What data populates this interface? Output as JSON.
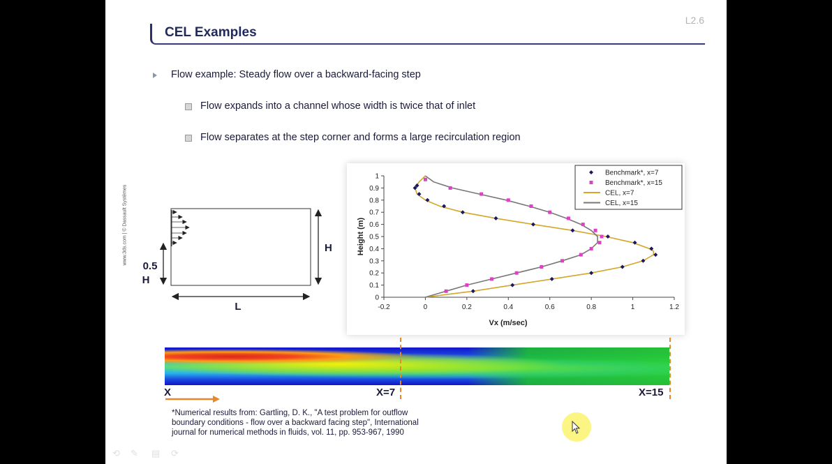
{
  "slide": {
    "page_number": "L2.6",
    "title": "CEL Examples",
    "bullets": [
      {
        "level": 1,
        "text": "Flow example: Steady flow over a backward-facing step"
      },
      {
        "level": 2,
        "text": "Flow expands into a channel whose width is twice that of inlet"
      },
      {
        "level": 2,
        "text": "Flow separates at the step corner and forms a large recirculation region"
      }
    ],
    "copyright": "www.3ds.com | © Dassault Systèmes"
  },
  "diagram": {
    "label_inlet": "0.5 H",
    "label_inlet_line1": "0.5",
    "label_inlet_line2": "H",
    "label_height": "H",
    "label_length": "L"
  },
  "chart_data": {
    "type": "scatter",
    "xlabel": "Vx (m/sec)",
    "ylabel": "Height (m)",
    "xlim": [
      -0.2,
      1.2
    ],
    "ylim": [
      0,
      1
    ],
    "xticks": [
      "-0.2",
      "0",
      "0.2",
      "0.4",
      "0.6",
      "0.8",
      "1",
      "1.2"
    ],
    "yticks": [
      "0",
      "0.1",
      "0.2",
      "0.3",
      "0.4",
      "0.5",
      "0.6",
      "0.7",
      "0.8",
      "0.9",
      "1"
    ],
    "legend_position": "top-right",
    "series": [
      {
        "name": "Benchmark*, x=7",
        "kind": "scatter",
        "marker": "diamond",
        "color": "#1a1a5a",
        "points": [
          [
            0.23,
            0.05
          ],
          [
            0.42,
            0.1
          ],
          [
            0.61,
            0.15
          ],
          [
            0.8,
            0.2
          ],
          [
            0.95,
            0.25
          ],
          [
            1.05,
            0.3
          ],
          [
            1.11,
            0.35
          ],
          [
            1.09,
            0.4
          ],
          [
            1.01,
            0.45
          ],
          [
            0.88,
            0.5
          ],
          [
            0.71,
            0.55
          ],
          [
            0.52,
            0.6
          ],
          [
            0.34,
            0.65
          ],
          [
            0.18,
            0.7
          ],
          [
            0.09,
            0.75
          ],
          [
            0.01,
            0.8
          ],
          [
            -0.03,
            0.85
          ],
          [
            -0.05,
            0.9
          ],
          [
            -0.04,
            0.92
          ]
        ]
      },
      {
        "name": "Benchmark*, x=15",
        "kind": "scatter",
        "marker": "square",
        "color": "#e040c8",
        "points": [
          [
            0.1,
            0.05
          ],
          [
            0.2,
            0.1
          ],
          [
            0.32,
            0.15
          ],
          [
            0.44,
            0.2
          ],
          [
            0.56,
            0.25
          ],
          [
            0.66,
            0.3
          ],
          [
            0.75,
            0.35
          ],
          [
            0.8,
            0.4
          ],
          [
            0.84,
            0.45
          ],
          [
            0.85,
            0.5
          ],
          [
            0.82,
            0.55
          ],
          [
            0.76,
            0.6
          ],
          [
            0.69,
            0.65
          ],
          [
            0.6,
            0.7
          ],
          [
            0.51,
            0.75
          ],
          [
            0.4,
            0.8
          ],
          [
            0.27,
            0.85
          ],
          [
            0.12,
            0.9
          ],
          [
            0.0,
            0.97
          ]
        ]
      },
      {
        "name": "CEL, x=7",
        "kind": "line",
        "color": "#d4a62a",
        "points": [
          [
            0.0,
            0.0
          ],
          [
            0.23,
            0.05
          ],
          [
            0.42,
            0.1
          ],
          [
            0.61,
            0.15
          ],
          [
            0.8,
            0.2
          ],
          [
            0.95,
            0.25
          ],
          [
            1.05,
            0.3
          ],
          [
            1.1,
            0.35
          ],
          [
            1.1,
            0.38
          ],
          [
            1.08,
            0.4
          ],
          [
            1.0,
            0.45
          ],
          [
            0.87,
            0.5
          ],
          [
            0.71,
            0.55
          ],
          [
            0.52,
            0.6
          ],
          [
            0.34,
            0.65
          ],
          [
            0.18,
            0.7
          ],
          [
            0.07,
            0.75
          ],
          [
            0.0,
            0.8
          ],
          [
            -0.04,
            0.85
          ],
          [
            -0.05,
            0.9
          ],
          [
            -0.03,
            0.95
          ],
          [
            0.0,
            1.0
          ]
        ]
      },
      {
        "name": "CEL, x=15",
        "kind": "line",
        "color": "#777777",
        "points": [
          [
            0.0,
            0.0
          ],
          [
            0.1,
            0.05
          ],
          [
            0.2,
            0.1
          ],
          [
            0.32,
            0.15
          ],
          [
            0.44,
            0.2
          ],
          [
            0.56,
            0.25
          ],
          [
            0.66,
            0.3
          ],
          [
            0.75,
            0.35
          ],
          [
            0.8,
            0.4
          ],
          [
            0.83,
            0.45
          ],
          [
            0.83,
            0.5
          ],
          [
            0.8,
            0.55
          ],
          [
            0.75,
            0.6
          ],
          [
            0.68,
            0.65
          ],
          [
            0.6,
            0.7
          ],
          [
            0.5,
            0.75
          ],
          [
            0.39,
            0.8
          ],
          [
            0.26,
            0.85
          ],
          [
            0.13,
            0.9
          ],
          [
            0.04,
            0.95
          ],
          [
            0.0,
            1.0
          ]
        ]
      }
    ]
  },
  "contour": {
    "label_x": "X",
    "label_x7": "X=7",
    "label_x15": "X=15"
  },
  "footnote": {
    "line1": "*Numerical results from:  Gartling, D. K., \"A test problem for outflow",
    "line2": "boundary conditions - flow over a backward facing step\",  International",
    "line3": "journal for numerical methods in fluids, vol. 11, pp. 953-967, 1990"
  },
  "colors": {
    "title": "#1f2a5a",
    "accent_orange": "#e8872a",
    "cel_x7": "#d4a62a",
    "cel_x15": "#777777",
    "bench_x15": "#e040c8",
    "bench_x7": "#1a1a5a"
  }
}
